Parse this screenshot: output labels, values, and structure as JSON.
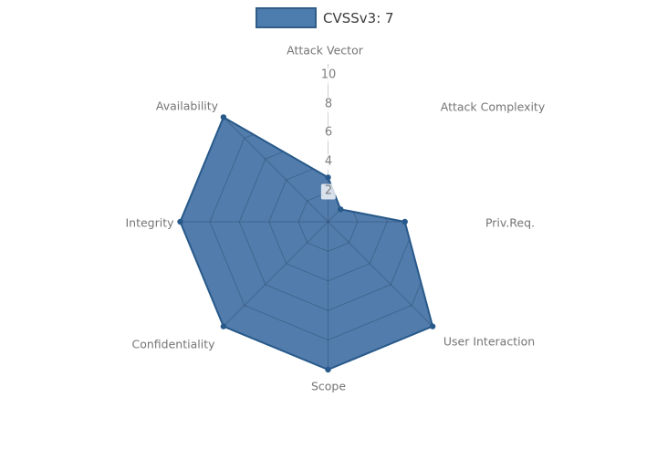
{
  "chart_data": {
    "type": "radar",
    "title": "",
    "legend": {
      "label": "CVSSv3: 7",
      "swatch_fill": "#4d7cae",
      "swatch_border": "#315d86",
      "position": "top-center"
    },
    "axes": [
      "Attack Vector",
      "Attack Complexity",
      "Priv.Req.",
      "User Interaction",
      "Scope",
      "Confidentiality",
      "Integrity",
      "Availability"
    ],
    "series": [
      {
        "name": "CVSSv3: 7",
        "values": [
          3,
          1.2,
          5.2,
          10,
          10,
          10,
          10,
          10
        ]
      }
    ],
    "radial_ticks": [
      10,
      8,
      6,
      4,
      2
    ],
    "range": [
      0,
      10
    ],
    "grid": "rings and spokes visible only inside filled polygon",
    "colors": {
      "fill": "#4c78a8",
      "outline": "#27598a",
      "marker": "#27598a",
      "grid_line": "#14304d",
      "axis_line": "#aaaaaa",
      "axis_label": "#757575",
      "tick_label": "#7d7d7d",
      "legend_text": "#3b3b3b",
      "background": "#ffffff"
    }
  }
}
